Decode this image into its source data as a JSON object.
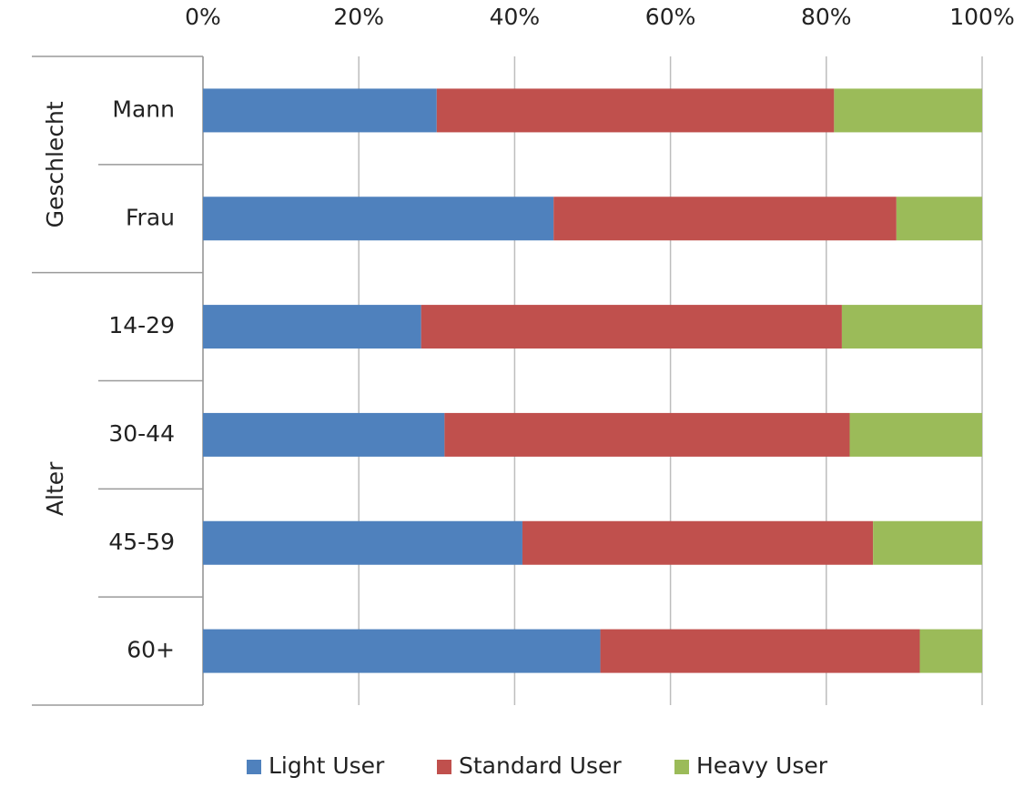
{
  "chart_data": {
    "type": "stacked_barh_percent",
    "groups": [
      {
        "label": "Geschlecht",
        "categories": [
          "Mann",
          "Frau"
        ]
      },
      {
        "label": "Alter",
        "categories": [
          "14-29",
          "30-44",
          "45-59",
          "60+"
        ]
      }
    ],
    "series": [
      {
        "name": "Light User",
        "color": "#4f81bd",
        "values": [
          30,
          45,
          28,
          31,
          41,
          51
        ]
      },
      {
        "name": "Standard User",
        "color": "#c0504d",
        "values": [
          51,
          44,
          54,
          52,
          45,
          41
        ]
      },
      {
        "name": "Heavy User",
        "color": "#9bbb59",
        "values": [
          19,
          11,
          18,
          17,
          14,
          8
        ]
      }
    ],
    "xlim": [
      0,
      100
    ],
    "xticks": [
      {
        "value": 0,
        "label": "0%"
      },
      {
        "value": 20,
        "label": "20%"
      },
      {
        "value": 40,
        "label": "40%"
      },
      {
        "value": 60,
        "label": "60%"
      },
      {
        "value": 80,
        "label": "80%"
      },
      {
        "value": 100,
        "label": "100%"
      }
    ],
    "grid": true,
    "legend": "bottom"
  }
}
